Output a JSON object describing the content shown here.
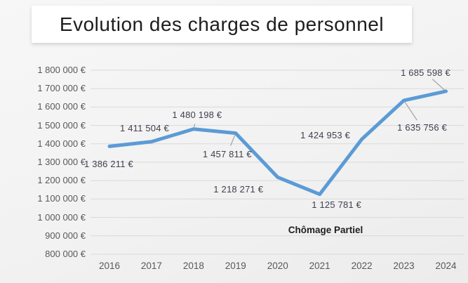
{
  "slide": {
    "title": "Evolution des charges de personnel"
  },
  "chart_data": {
    "type": "line",
    "title": "Evolution des charges de personnel",
    "categories": [
      "2016",
      "2017",
      "2018",
      "2019",
      "2020",
      "2021",
      "2022",
      "2023",
      "2024"
    ],
    "series": [
      {
        "values": [
          1386211,
          1411504,
          1480198,
          1457811,
          1218271,
          1125781,
          1424953,
          1635756,
          1685598
        ]
      }
    ],
    "data_labels": [
      "1 386 211 €",
      "1 411 504 €",
      "1 480 198 €",
      "1 457 811 €",
      "1 218 271 €",
      "1 125 781 €",
      "1 424 953 €",
      "1 635 756 €",
      "1 685 598 €"
    ],
    "annotation": "Chômage Partiel",
    "ylim": [
      800000,
      1800000
    ],
    "ytick_step": 100000,
    "ytick_labels": [
      "1 800 000 €",
      "1 700 000 €",
      "1 600 000 €",
      "1 500 000 €",
      "1 400 000 €",
      "1 300 000 €",
      "1 200 000 €",
      "1 100 000 €",
      "1 000 000 €",
      "900 000 €",
      "800 000 €"
    ],
    "grid": true,
    "legend": "none",
    "colors": {
      "line": "#5b9bd5",
      "grid": "#d9d9d9",
      "axis_text": "#595959",
      "data_label_text": "#404050",
      "leader": "#a0a0a0",
      "annotation_text": "#1f1f1f",
      "title_text": "#1d1d1d",
      "slide_bg": "#f2f2f2",
      "title_bg": "#ffffff"
    }
  }
}
